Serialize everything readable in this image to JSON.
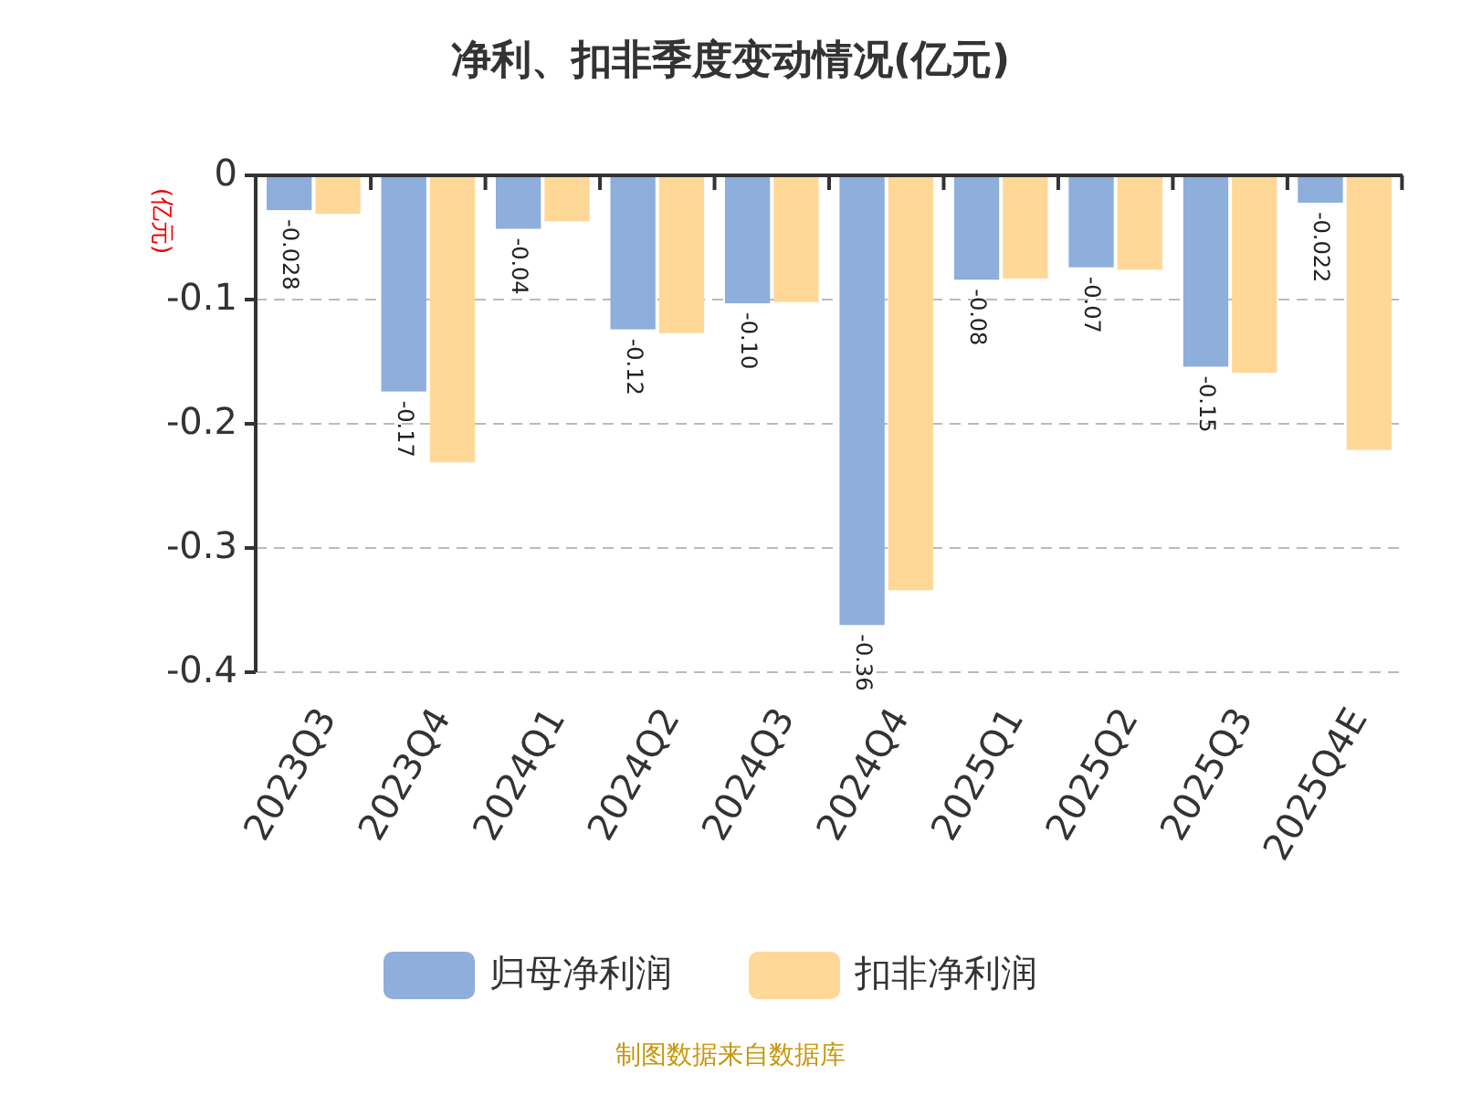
{
  "chart_data": {
    "type": "bar",
    "title": "净利、扣非季度变动情况(亿元)",
    "ylabel": "(亿元)",
    "categories": [
      "2023Q3",
      "2023Q4",
      "2024Q1",
      "2024Q2",
      "2024Q3",
      "2024Q4",
      "2025Q1",
      "2025Q2",
      "2025Q3",
      "2025Q4E"
    ],
    "series": [
      {
        "name": "归母净利润",
        "color": "#8eaedb",
        "values": [
          -0.028,
          -0.174,
          -0.043,
          -0.124,
          -0.103,
          -0.362,
          -0.084,
          -0.074,
          -0.154,
          -0.022
        ],
        "value_labels": [
          "-0.028",
          "-0.17",
          "-0.04",
          "-0.12",
          "-0.10",
          "-0.36",
          "-0.08",
          "-0.07",
          "-0.15",
          "-0.022"
        ]
      },
      {
        "name": "扣非净利润",
        "color": "#ffd898",
        "values": [
          -0.031,
          -0.231,
          -0.037,
          -0.127,
          -0.102,
          -0.334,
          -0.083,
          -0.076,
          -0.159,
          -0.221
        ]
      }
    ],
    "ylim": [
      -0.4,
      0
    ],
    "yticks": [
      0,
      -0.1,
      -0.2,
      -0.3,
      -0.4
    ],
    "grid": "y",
    "legend": "bottom",
    "annotations": [
      "制图数据来自数据库"
    ]
  }
}
